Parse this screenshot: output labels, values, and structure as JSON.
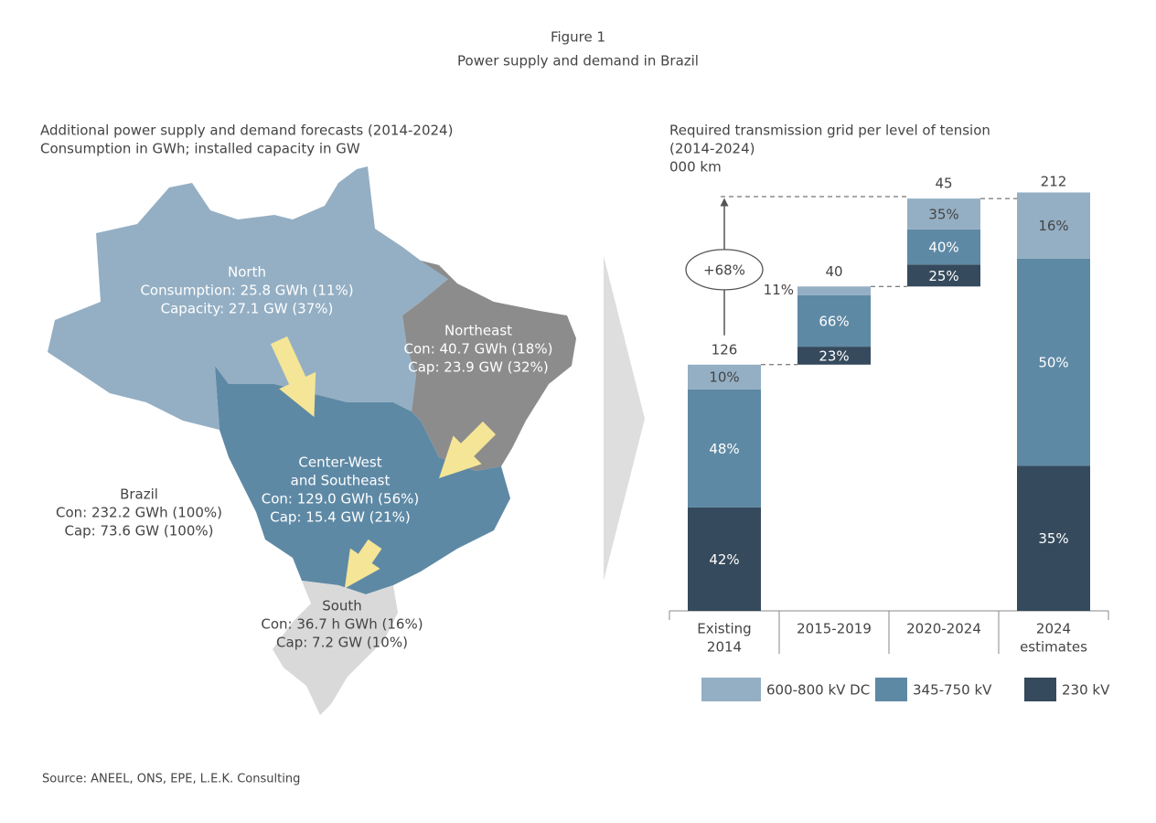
{
  "figure": "Figure 1",
  "title": "Power supply and demand in Brazil",
  "map": {
    "title": [
      "Additional power supply and demand forecasts (2014-2024)",
      "Consumption in GWh; installed capacity in GW"
    ],
    "regions": [
      {
        "lines": [
          "North",
          "Consumption: 25.8 GWh (11%)",
          "Capacity: 27.1 GW (37%)"
        ]
      },
      {
        "lines": [
          "Northeast",
          "Con: 40.7 GWh (18%)",
          "Cap: 23.9 GW (32%)"
        ]
      },
      {
        "lines": [
          "Center-West",
          "and Southeast",
          "Con: 129.0 GWh (56%)",
          "Cap: 15.4 GW (21%)"
        ]
      },
      {
        "lines": [
          "South",
          "Con: 36.7 h GWh (16%)",
          "Cap: 7.2 GW (10%)"
        ]
      }
    ],
    "total": {
      "lines": [
        "Brazil",
        "Con: 232.2 GWh (100%)",
        "Cap: 73.6 GW (100%)"
      ]
    }
  },
  "chart_data": {
    "type": "waterfall",
    "title": [
      "Required transmission grid per level of tension",
      "(2014-2024)",
      "000 km"
    ],
    "categories": [
      [
        "Existing",
        "2014"
      ],
      [
        "2015-2019"
      ],
      [
        "2020-2024"
      ],
      [
        "2024",
        "estimates"
      ]
    ],
    "measure": [
      "absolute",
      "relative",
      "relative",
      "absolute"
    ],
    "totals": [
      126,
      40,
      45,
      212
    ],
    "series": [
      {
        "name": "600-800 kV DC",
        "color": "#94afc4",
        "values": [
          10,
          11,
          35,
          16
        ],
        "value_labels": [
          "10%",
          "11%",
          "35%",
          "16%"
        ]
      },
      {
        "name": "345-750 kV",
        "color": "#5e89a5",
        "values": [
          48,
          66,
          40,
          50
        ],
        "value_labels": [
          "48%",
          "66%",
          "40%",
          "50%"
        ]
      },
      {
        "name": "230 kV",
        "color": "#354a5c",
        "values": [
          42,
          23,
          25,
          35
        ],
        "value_labels": [
          "42%",
          "23%",
          "25%",
          "35%"
        ]
      }
    ],
    "annotation": "+68%"
  },
  "source": "Source: ANEEL, ONS, EPE, L.E.K. Consulting"
}
